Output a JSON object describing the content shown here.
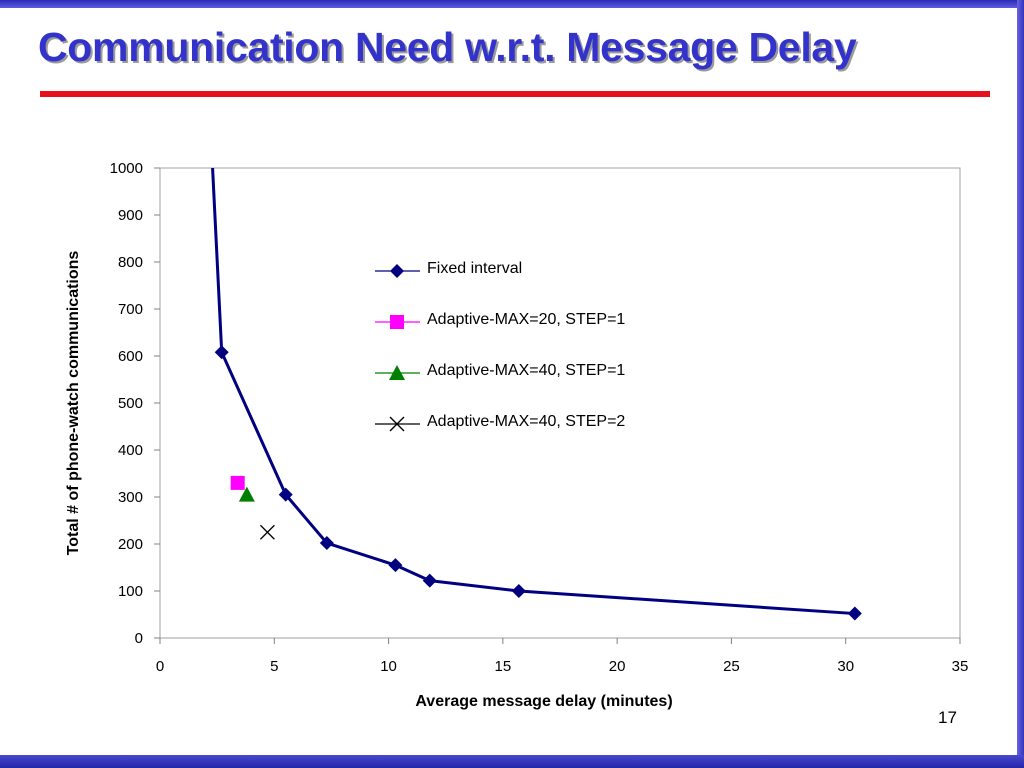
{
  "slide": {
    "title": "Communication Need w.r.t. Message Delay",
    "page_number": "17"
  },
  "colors": {
    "frame": "#3333bb",
    "title": "#3333cc",
    "rule": "#e8101a",
    "fixed_series": "#000080",
    "adaptive_20_1": "#ff00ff",
    "adaptive_40_1": "#008000",
    "adaptive_40_2": "#000000"
  },
  "chart_data": {
    "type": "scatter",
    "title": "",
    "xlabel": "Average message delay (minutes)",
    "ylabel": "Total # of phone-watch communications",
    "xlim": [
      0,
      35
    ],
    "ylim": [
      0,
      1000
    ],
    "xticks": [
      "0",
      "5",
      "10",
      "15",
      "20",
      "25",
      "30",
      "35"
    ],
    "yticks": [
      "0",
      "100",
      "200",
      "300",
      "400",
      "500",
      "600",
      "700",
      "800",
      "900",
      "1000"
    ],
    "grid": false,
    "legend_position": "right",
    "series": [
      {
        "name": "Fixed interval",
        "marker": "diamond",
        "line": true,
        "color": "#000080",
        "points": [
          [
            2.3,
            1000
          ],
          [
            2.7,
            608
          ],
          [
            5.5,
            305
          ],
          [
            7.3,
            202
          ],
          [
            10.3,
            155
          ],
          [
            11.8,
            122
          ],
          [
            15.7,
            100
          ],
          [
            30.4,
            52
          ]
        ]
      },
      {
        "name": "Adaptive-MAX=20, STEP=1",
        "marker": "square",
        "line": false,
        "color": "#ff00ff",
        "points": [
          [
            3.4,
            330
          ]
        ]
      },
      {
        "name": "Adaptive-MAX=40, STEP=1",
        "marker": "triangle",
        "line": false,
        "color": "#008000",
        "points": [
          [
            3.8,
            305
          ]
        ]
      },
      {
        "name": "Adaptive-MAX=40, STEP=2",
        "marker": "x",
        "line": false,
        "color": "#000000",
        "points": [
          [
            4.7,
            225
          ]
        ]
      }
    ]
  }
}
